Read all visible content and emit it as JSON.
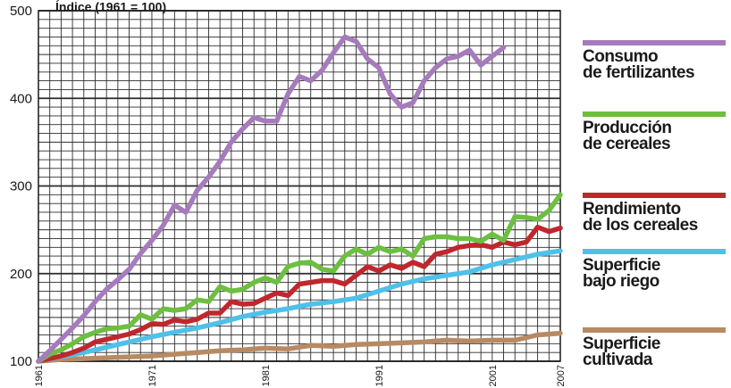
{
  "chart_data": {
    "type": "line",
    "title": "Índice (1961 = 100)",
    "ylim": [
      100,
      500
    ],
    "yticks": [
      100,
      200,
      300,
      400,
      500
    ],
    "xlim": [
      1961,
      2007
    ],
    "xticks": [
      1961,
      1971,
      1981,
      1991,
      2001,
      2007
    ],
    "grid": true,
    "legend_position": "right",
    "series": [
      {
        "name": "Consumo de fertilizantes",
        "color": "#a67bbd",
        "x": [
          1961,
          1962,
          1963,
          1964,
          1965,
          1966,
          1967,
          1968,
          1969,
          1970,
          1971,
          1972,
          1973,
          1974,
          1975,
          1976,
          1977,
          1978,
          1979,
          1980,
          1981,
          1982,
          1983,
          1984,
          1985,
          1986,
          1987,
          1988,
          1989,
          1990,
          1991,
          1992,
          1993,
          1994,
          1995,
          1996,
          1997,
          1998,
          1999,
          2000,
          2001,
          2002
        ],
        "values": [
          100,
          112,
          125,
          138,
          152,
          168,
          182,
          193,
          205,
          223,
          238,
          255,
          278,
          270,
          295,
          310,
          328,
          350,
          365,
          378,
          374,
          374,
          405,
          425,
          420,
          432,
          452,
          470,
          465,
          445,
          435,
          405,
          390,
          395,
          420,
          435,
          445,
          448,
          455,
          438,
          448,
          458
        ]
      },
      {
        "name": "Producción de cereales",
        "color": "#6cbf3f",
        "x": [
          1961,
          1962,
          1963,
          1964,
          1965,
          1966,
          1967,
          1968,
          1969,
          1970,
          1971,
          1972,
          1973,
          1974,
          1975,
          1976,
          1977,
          1978,
          1979,
          1980,
          1981,
          1982,
          1983,
          1984,
          1985,
          1986,
          1987,
          1988,
          1989,
          1990,
          1991,
          1992,
          1993,
          1994,
          1995,
          1996,
          1997,
          1998,
          1999,
          2000,
          2001,
          2002,
          2003,
          2004,
          2005,
          2006,
          2007
        ],
        "values": [
          100,
          108,
          113,
          120,
          128,
          133,
          137,
          138,
          140,
          153,
          148,
          160,
          158,
          160,
          170,
          168,
          185,
          180,
          182,
          190,
          195,
          190,
          208,
          212,
          213,
          205,
          203,
          220,
          228,
          222,
          230,
          225,
          228,
          220,
          240,
          242,
          242,
          240,
          240,
          237,
          245,
          238,
          265,
          264,
          262,
          272,
          290
        ]
      },
      {
        "name": "Rendimiento de los cereales",
        "color": "#c0272d",
        "x": [
          1961,
          1962,
          1963,
          1964,
          1965,
          1966,
          1967,
          1968,
          1969,
          1970,
          1971,
          1972,
          1973,
          1974,
          1975,
          1976,
          1977,
          1978,
          1979,
          1980,
          1981,
          1982,
          1983,
          1984,
          1985,
          1986,
          1987,
          1988,
          1989,
          1990,
          1991,
          1992,
          1993,
          1994,
          1995,
          1996,
          1997,
          1998,
          1999,
          2000,
          2001,
          2002,
          2003,
          2004,
          2005,
          2006,
          2007
        ],
        "values": [
          100,
          103,
          106,
          110,
          115,
          122,
          125,
          128,
          131,
          136,
          143,
          142,
          147,
          145,
          148,
          155,
          155,
          168,
          165,
          166,
          172,
          178,
          175,
          188,
          190,
          192,
          192,
          188,
          198,
          208,
          203,
          210,
          206,
          213,
          208,
          222,
          225,
          230,
          232,
          233,
          230,
          236,
          233,
          236,
          253,
          248,
          252
        ]
      },
      {
        "name": "Superficie bajo riego",
        "color": "#4fc1e9",
        "x": [
          1961,
          1963,
          1965,
          1967,
          1969,
          1971,
          1973,
          1975,
          1977,
          1979,
          1981,
          1983,
          1985,
          1987,
          1989,
          1991,
          1993,
          1995,
          1997,
          1999,
          2001,
          2003,
          2005,
          2007
        ],
        "values": [
          100,
          105,
          110,
          116,
          122,
          128,
          133,
          138,
          144,
          151,
          156,
          160,
          165,
          168,
          172,
          180,
          188,
          194,
          198,
          202,
          210,
          216,
          222,
          226
        ]
      },
      {
        "name": "Superficie cultivada",
        "color": "#b88a63",
        "x": [
          1961,
          1963,
          1965,
          1967,
          1969,
          1971,
          1973,
          1975,
          1977,
          1979,
          1981,
          1983,
          1985,
          1987,
          1989,
          1991,
          1993,
          1995,
          1997,
          1999,
          2001,
          2003,
          2005,
          2007
        ],
        "values": [
          100,
          102,
          103,
          104,
          105,
          106,
          108,
          110,
          112,
          113,
          115,
          114,
          118,
          117,
          119,
          120,
          121,
          122,
          124,
          123,
          124,
          124,
          130,
          132
        ]
      }
    ]
  },
  "legend": [
    {
      "line1": "Consumo",
      "line2": "de fertilizantes",
      "color": "#a67bbd"
    },
    {
      "line1": "Producción",
      "line2": "de cereales",
      "color": "#6cbf3f"
    },
    {
      "line1": "Rendimiento",
      "line2": "de los cereales",
      "color": "#c0272d"
    },
    {
      "line1": "Superficie",
      "line2": "bajo riego",
      "color": "#4fc1e9"
    },
    {
      "line1": "Superficie",
      "line2": "cultivada",
      "color": "#b88a63"
    }
  ]
}
